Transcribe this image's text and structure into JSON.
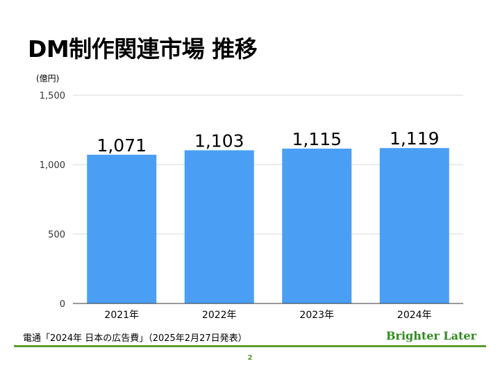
{
  "slide": {
    "title": "DM制作関連市場 推移",
    "source": "電通「2024年 日本の広告費」（2025年2月27日発表）",
    "brand": "Brighter Later",
    "page_number": "2"
  },
  "colors": {
    "bar": "#4a9ff5",
    "grid": "#d9d9d9",
    "axis": "#333333",
    "brand": "#2e8b1e",
    "rule": "#5a9a2e"
  },
  "chart_data": {
    "type": "bar",
    "unit_label": "(億円)",
    "categories": [
      "2021年",
      "2022年",
      "2023年",
      "2024年"
    ],
    "values": [
      1071,
      1103,
      1115,
      1119
    ],
    "value_labels": [
      "1,071",
      "1,103",
      "1,115",
      "1,119"
    ],
    "ylim": [
      0,
      1500
    ],
    "yticks": [
      0,
      500,
      1000,
      1500
    ],
    "ytick_labels": [
      "0",
      "500",
      "1,000",
      "1,500"
    ],
    "grid": true,
    "legend": "none"
  }
}
